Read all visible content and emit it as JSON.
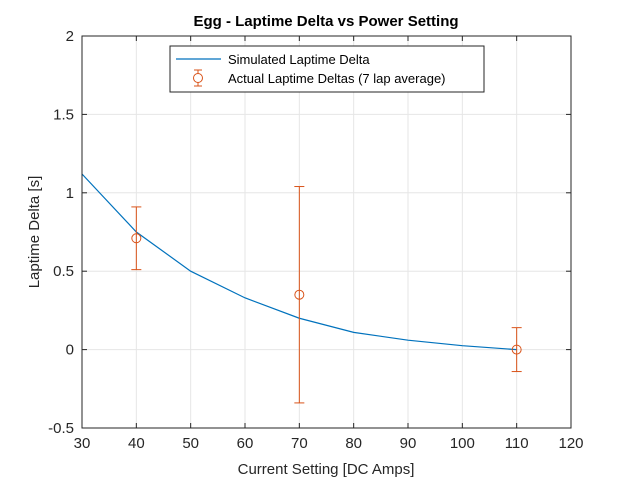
{
  "chart_data": {
    "type": "line",
    "title": "Egg - Laptime Delta vs Power Setting",
    "xlabel": "Current Setting [DC Amps]",
    "ylabel": "Laptime Delta [s]",
    "xlim": [
      30,
      120
    ],
    "ylim": [
      -0.5,
      2
    ],
    "xticks": [
      30,
      40,
      50,
      60,
      70,
      80,
      90,
      100,
      110,
      120
    ],
    "yticks": [
      -0.5,
      0,
      0.5,
      1,
      1.5,
      2
    ],
    "ytick_labels": [
      "-0.5",
      "0",
      "0.5",
      "1",
      "1.5",
      "2"
    ],
    "grid": true,
    "legend_placement": "top-center",
    "series": [
      {
        "name": "Simulated Laptime Delta",
        "kind": "line",
        "color": "#0072BD",
        "x": [
          30,
          40,
          50,
          60,
          70,
          80,
          90,
          100,
          110
        ],
        "y": [
          1.12,
          0.75,
          0.5,
          0.33,
          0.2,
          0.11,
          0.06,
          0.025,
          0.0
        ]
      },
      {
        "name": "Actual Laptime Deltas (7 lap average)",
        "kind": "errorbar",
        "color": "#D95319",
        "marker": "circle",
        "x": [
          40,
          70,
          110
        ],
        "y": [
          0.71,
          0.35,
          0.0
        ],
        "err_low": [
          0.2,
          0.69,
          0.14
        ],
        "err_high": [
          0.2,
          0.69,
          0.14
        ]
      }
    ]
  }
}
